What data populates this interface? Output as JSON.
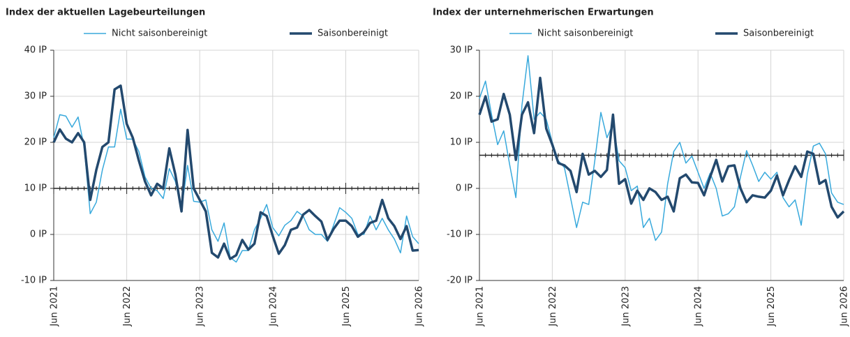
{
  "chart_data": [
    {
      "type": "line",
      "title": "Index der aktuellen Lagebeurteilungen",
      "categories": [
        "Jun 2021",
        null,
        null,
        null,
        null,
        null,
        null,
        null,
        null,
        null,
        null,
        null,
        "Jun 2022",
        null,
        null,
        null,
        null,
        null,
        null,
        null,
        null,
        null,
        null,
        null,
        "Jun 2023",
        null,
        null,
        null,
        null,
        null,
        null,
        null,
        null,
        null,
        null,
        null,
        "Jun 2024",
        null,
        null,
        null,
        null,
        null,
        null,
        null,
        null,
        null,
        null,
        null,
        "Jun 2025",
        null,
        null,
        null,
        null,
        null,
        null,
        null,
        null,
        null,
        null,
        null,
        "Jun 2026"
      ],
      "series": [
        {
          "name": "Nicht saisonbereinigt",
          "color": "#38a9dc",
          "values": [
            21,
            26,
            25.7,
            23.3,
            25.5,
            19,
            4.5,
            7,
            14,
            19,
            19,
            27.2,
            20.7,
            20.7,
            18,
            12.5,
            10,
            9.5,
            7.8,
            14.3,
            11.5,
            5.5,
            15,
            7.2,
            7,
            7.5,
            1,
            -1.5,
            2.5,
            -5,
            -6,
            -3.5,
            -3.5,
            1,
            3.5,
            6.5,
            1.5,
            -0.3,
            2,
            3,
            5,
            4,
            1,
            0,
            0,
            -1.5,
            2,
            5.8,
            4.8,
            3.5,
            0,
            0,
            4,
            1,
            3.5,
            1,
            -1,
            -4,
            4,
            -0.5,
            -2
          ]
        },
        {
          "name": "Saisonbereinigt",
          "color": "#23496e",
          "values": [
            20,
            22.8,
            20.8,
            20,
            22,
            20,
            7.5,
            14,
            19,
            20,
            31.5,
            32.3,
            24,
            21,
            16,
            11.5,
            8.5,
            11,
            10,
            18.7,
            13,
            5,
            22.7,
            10,
            7.5,
            5,
            -4,
            -5,
            -2,
            -5.3,
            -4.5,
            -1.2,
            -3.3,
            -2,
            4.8,
            4,
            -0.3,
            -4.2,
            -2.3,
            1,
            1.5,
            4.3,
            5.3,
            4,
            2.8,
            -1.2,
            1.2,
            3,
            3,
            1.8,
            -0.5,
            0.5,
            2.5,
            3,
            7.5,
            3.5,
            1.8,
            -1,
            1.8,
            -3.5,
            -3.4
          ]
        }
      ],
      "ylim": [
        -10,
        40
      ],
      "yticks": [
        {
          "value": -10,
          "label": "-10 IP"
        },
        {
          "value": 0,
          "label": "0 IP"
        },
        {
          "value": 10,
          "label": "10 IP"
        },
        {
          "value": 20,
          "label": "20 IP"
        },
        {
          "value": 30,
          "label": "30 IP"
        },
        {
          "value": 40,
          "label": "40 IP"
        }
      ],
      "xaxis_at": 10,
      "grid": true
    },
    {
      "type": "line",
      "title": "Index der unternehmerischen Erwartungen",
      "categories": [
        "Jun 2021",
        null,
        null,
        null,
        null,
        null,
        null,
        null,
        null,
        null,
        null,
        null,
        "Jun 2022",
        null,
        null,
        null,
        null,
        null,
        null,
        null,
        null,
        null,
        null,
        null,
        "Jun 2023",
        null,
        null,
        null,
        null,
        null,
        null,
        null,
        null,
        null,
        null,
        null,
        "Jun 2024",
        null,
        null,
        null,
        null,
        null,
        null,
        null,
        null,
        null,
        null,
        null,
        "Jun 2025",
        null,
        null,
        null,
        null,
        null,
        null,
        null,
        null,
        null,
        null,
        null,
        "Jun 2026"
      ],
      "series": [
        {
          "name": "Nicht saisonbereinigt",
          "color": "#38a9dc",
          "values": [
            19.5,
            23.3,
            16,
            9.5,
            12.5,
            5,
            -2,
            18,
            28.8,
            15,
            16.5,
            15,
            10,
            6,
            4.5,
            -2,
            -8.5,
            -3,
            -3.5,
            6,
            16.5,
            11,
            14,
            6,
            4.5,
            -0.5,
            0.5,
            -8.5,
            -6.5,
            -11.3,
            -9.5,
            1,
            8,
            10,
            5.5,
            7,
            3.5,
            0,
            3.3,
            0,
            -6,
            -5.5,
            -4,
            2.5,
            8.2,
            5,
            1.5,
            3.5,
            2,
            3.5,
            -2,
            -4,
            -2.5,
            -8,
            3,
            9.2,
            9.8,
            7.5,
            -1,
            -3,
            -3.5
          ]
        },
        {
          "name": "Saisonbereinigt",
          "color": "#23496e",
          "values": [
            16,
            20,
            14.5,
            15,
            20.5,
            16,
            6.2,
            16,
            18.7,
            12,
            24,
            13,
            9.5,
            5.5,
            5,
            3.8,
            -0.8,
            7.5,
            3,
            3.8,
            2.5,
            4,
            16,
            1,
            2,
            -3.3,
            -0.5,
            -2.5,
            0,
            -0.8,
            -2.5,
            -1.8,
            -5,
            2.2,
            3,
            1.3,
            1.2,
            -1.5,
            2.5,
            6.2,
            1.5,
            4.8,
            5,
            0,
            -3,
            -1.5,
            -1.8,
            -2,
            -0.5,
            2.8,
            -1.5,
            1.8,
            4.8,
            2.5,
            8,
            7.5,
            1,
            1.8,
            -4,
            -6.3,
            -5
          ]
        }
      ],
      "ylim": [
        -20,
        30
      ],
      "yticks": [
        {
          "value": -20,
          "label": "-20 IP"
        },
        {
          "value": -10,
          "label": "-10 IP"
        },
        {
          "value": 0,
          "label": "0 IP"
        },
        {
          "value": 10,
          "label": "10 IP"
        },
        {
          "value": 20,
          "label": "20 IP"
        },
        {
          "value": 30,
          "label": "30 IP"
        }
      ],
      "xaxis_at": 7.2,
      "grid": true
    }
  ]
}
